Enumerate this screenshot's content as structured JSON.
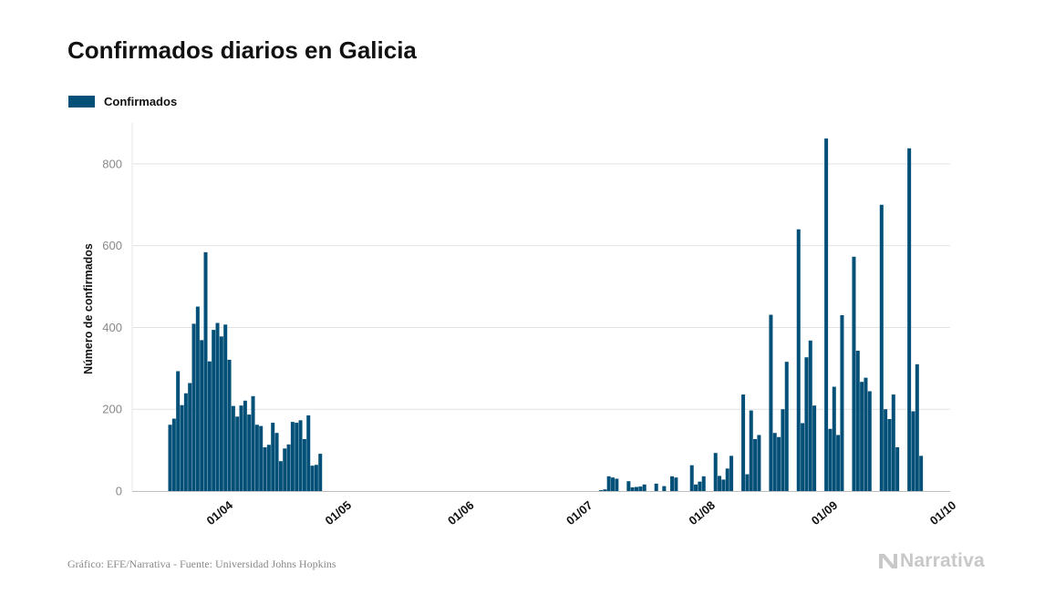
{
  "chart_data": {
    "type": "bar",
    "title": "Confirmados diarios en Galicia",
    "legend": [
      "Confirmados"
    ],
    "ylabel": "Número de confirmados",
    "xlabel": "",
    "ylim": [
      0,
      900
    ],
    "yticks": [
      0,
      200,
      400,
      600,
      800
    ],
    "xticks": [
      {
        "day": 14,
        "label": "01/04"
      },
      {
        "day": 44,
        "label": "01/05"
      },
      {
        "day": 75,
        "label": "01/06"
      },
      {
        "day": 105,
        "label": "01/07"
      },
      {
        "day": 136,
        "label": "01/08"
      },
      {
        "day": 167,
        "label": "01/09"
      },
      {
        "day": 197,
        "label": "01/10"
      }
    ],
    "x_start_date": "18/03",
    "series": [
      {
        "name": "Confirmados",
        "color": "#024f77",
        "values": [
          162,
          177,
          293,
          210,
          239,
          264,
          409,
          451,
          369,
          584,
          317,
          394,
          411,
          378,
          407,
          321,
          208,
          182,
          209,
          221,
          187,
          232,
          162,
          159,
          107,
          113,
          167,
          142,
          73,
          104,
          114,
          169,
          167,
          173,
          127,
          185,
          62,
          64,
          91,
          0,
          0,
          0,
          0,
          0,
          0,
          0,
          0,
          0,
          0,
          0,
          0,
          0,
          0,
          0,
          0,
          0,
          0,
          0,
          0,
          0,
          0,
          0,
          0,
          0,
          0,
          0,
          0,
          0,
          0,
          0,
          0,
          0,
          0,
          0,
          0,
          0,
          0,
          0,
          0,
          0,
          0,
          0,
          0,
          0,
          0,
          0,
          0,
          0,
          0,
          0,
          0,
          0,
          0,
          0,
          0,
          0,
          0,
          0,
          0,
          0,
          0,
          0,
          0,
          0,
          0,
          0,
          0,
          0,
          0,
          2,
          4,
          36,
          33,
          30,
          0,
          0,
          24,
          9,
          10,
          11,
          16,
          0,
          0,
          18,
          0,
          12,
          0,
          36,
          33,
          0,
          0,
          0,
          63,
          16,
          23,
          36,
          0,
          0,
          93,
          37,
          28,
          55,
          86,
          0,
          0,
          236,
          41,
          197,
          127,
          137,
          0,
          0,
          431,
          142,
          132,
          200,
          316,
          0,
          0,
          640,
          166,
          327,
          368,
          209,
          0,
          0,
          862,
          152,
          255,
          137,
          430,
          0,
          0,
          573,
          343,
          267,
          277,
          244,
          0,
          0,
          700,
          200,
          176,
          236,
          107,
          0,
          0,
          838,
          195,
          310,
          86
        ]
      }
    ]
  },
  "legend_label": "Confirmados",
  "footer": {
    "source": "Gráfico: EFE/Narrativa - Fuente: Universidad Johns Hopkins",
    "brand": "Narrativa"
  }
}
